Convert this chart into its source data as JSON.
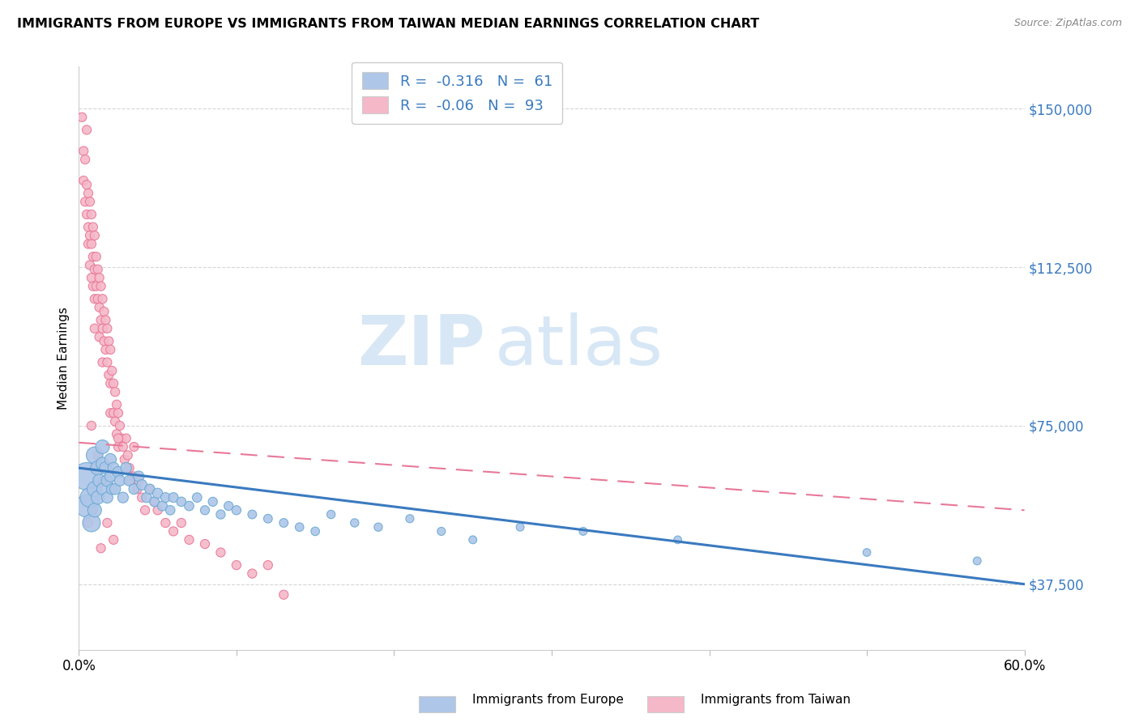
{
  "title": "IMMIGRANTS FROM EUROPE VS IMMIGRANTS FROM TAIWAN MEDIAN EARNINGS CORRELATION CHART",
  "source": "Source: ZipAtlas.com",
  "ylabel": "Median Earnings",
  "yticks": [
    37500,
    75000,
    112500,
    150000
  ],
  "ytick_labels": [
    "$37,500",
    "$75,000",
    "$112,500",
    "$150,000"
  ],
  "xtick_positions": [
    0.0,
    0.1,
    0.2,
    0.3,
    0.4,
    0.5,
    0.6
  ],
  "xmin": 0.0,
  "xmax": 0.6,
  "ymin": 22000,
  "ymax": 160000,
  "europe_color": "#aec6e8",
  "taiwan_color": "#f5b8c8",
  "europe_edge_color": "#6aaad4",
  "taiwan_edge_color": "#e87898",
  "trendline_blue": "#3a7abf",
  "trendline_pink": "#e87898",
  "legend_label_europe": "Immigrants from Europe",
  "legend_label_taiwan": "Immigrants from Taiwan",
  "watermark_zip": "ZIP",
  "watermark_atlas": "atlas",
  "europe_R": -0.316,
  "europe_N": 61,
  "taiwan_R": -0.06,
  "taiwan_N": 93,
  "europe_scatter_x": [
    0.005,
    0.005,
    0.007,
    0.008,
    0.01,
    0.01,
    0.01,
    0.012,
    0.012,
    0.013,
    0.015,
    0.015,
    0.015,
    0.017,
    0.018,
    0.018,
    0.02,
    0.02,
    0.021,
    0.022,
    0.023,
    0.025,
    0.026,
    0.028,
    0.03,
    0.032,
    0.035,
    0.038,
    0.04,
    0.043,
    0.045,
    0.048,
    0.05,
    0.053,
    0.055,
    0.058,
    0.06,
    0.065,
    0.07,
    0.075,
    0.08,
    0.085,
    0.09,
    0.095,
    0.1,
    0.11,
    0.12,
    0.13,
    0.14,
    0.15,
    0.16,
    0.175,
    0.19,
    0.21,
    0.23,
    0.25,
    0.28,
    0.32,
    0.38,
    0.5,
    0.57
  ],
  "europe_scatter_y": [
    63000,
    56000,
    58000,
    52000,
    68000,
    60000,
    55000,
    65000,
    58000,
    62000,
    70000,
    66000,
    60000,
    65000,
    62000,
    58000,
    67000,
    63000,
    60000,
    65000,
    60000,
    64000,
    62000,
    58000,
    65000,
    62000,
    60000,
    63000,
    61000,
    58000,
    60000,
    57000,
    59000,
    56000,
    58000,
    55000,
    58000,
    57000,
    56000,
    58000,
    55000,
    57000,
    54000,
    56000,
    55000,
    54000,
    53000,
    52000,
    51000,
    50000,
    54000,
    52000,
    51000,
    53000,
    50000,
    48000,
    51000,
    50000,
    48000,
    45000,
    43000
  ],
  "europe_scatter_size": [
    600,
    400,
    300,
    250,
    220,
    180,
    150,
    160,
    140,
    130,
    150,
    130,
    110,
    120,
    110,
    100,
    110,
    100,
    95,
    100,
    95,
    100,
    90,
    90,
    95,
    90,
    85,
    90,
    85,
    80,
    80,
    75,
    80,
    75,
    75,
    70,
    75,
    70,
    70,
    70,
    65,
    65,
    65,
    65,
    65,
    60,
    60,
    60,
    58,
    58,
    55,
    55,
    55,
    52,
    52,
    50,
    50,
    50,
    48,
    48,
    50
  ],
  "taiwan_scatter_x": [
    0.002,
    0.003,
    0.003,
    0.004,
    0.004,
    0.005,
    0.005,
    0.005,
    0.006,
    0.006,
    0.006,
    0.007,
    0.007,
    0.007,
    0.008,
    0.008,
    0.008,
    0.009,
    0.009,
    0.009,
    0.01,
    0.01,
    0.01,
    0.01,
    0.011,
    0.011,
    0.012,
    0.012,
    0.013,
    0.013,
    0.013,
    0.014,
    0.014,
    0.015,
    0.015,
    0.015,
    0.016,
    0.016,
    0.017,
    0.017,
    0.018,
    0.018,
    0.019,
    0.019,
    0.02,
    0.02,
    0.02,
    0.021,
    0.022,
    0.022,
    0.023,
    0.023,
    0.024,
    0.024,
    0.025,
    0.025,
    0.026,
    0.027,
    0.028,
    0.029,
    0.03,
    0.031,
    0.032,
    0.033,
    0.035,
    0.035,
    0.037,
    0.038,
    0.04,
    0.042,
    0.045,
    0.048,
    0.05,
    0.055,
    0.06,
    0.065,
    0.07,
    0.08,
    0.09,
    0.1,
    0.11,
    0.12,
    0.13,
    0.025,
    0.015,
    0.008,
    0.012,
    0.009,
    0.018,
    0.022,
    0.01,
    0.006,
    0.014
  ],
  "taiwan_scatter_y": [
    148000,
    140000,
    133000,
    138000,
    128000,
    145000,
    132000,
    125000,
    130000,
    122000,
    118000,
    128000,
    120000,
    113000,
    125000,
    118000,
    110000,
    122000,
    115000,
    108000,
    120000,
    112000,
    105000,
    98000,
    115000,
    108000,
    112000,
    105000,
    110000,
    103000,
    96000,
    108000,
    100000,
    105000,
    98000,
    90000,
    102000,
    95000,
    100000,
    93000,
    98000,
    90000,
    95000,
    87000,
    93000,
    85000,
    78000,
    88000,
    85000,
    78000,
    83000,
    76000,
    80000,
    73000,
    78000,
    70000,
    75000,
    72000,
    70000,
    67000,
    72000,
    68000,
    65000,
    62000,
    70000,
    63000,
    60000,
    62000,
    58000,
    55000,
    60000,
    57000,
    55000,
    52000,
    50000,
    52000,
    48000,
    47000,
    45000,
    42000,
    40000,
    42000,
    35000,
    72000,
    62000,
    75000,
    68000,
    55000,
    52000,
    48000,
    65000,
    52000,
    46000
  ],
  "taiwan_scatter_size": [
    65,
    65,
    65,
    65,
    65,
    65,
    65,
    65,
    65,
    65,
    65,
    65,
    65,
    65,
    65,
    65,
    65,
    65,
    65,
    65,
    65,
    65,
    65,
    65,
    65,
    65,
    65,
    65,
    65,
    65,
    65,
    65,
    65,
    65,
    65,
    65,
    65,
    65,
    65,
    65,
    65,
    65,
    65,
    65,
    65,
    65,
    65,
    65,
    65,
    65,
    65,
    65,
    65,
    65,
    65,
    65,
    65,
    65,
    65,
    65,
    65,
    65,
    65,
    65,
    65,
    65,
    65,
    65,
    65,
    65,
    65,
    65,
    65,
    65,
    65,
    65,
    65,
    65,
    65,
    65,
    65,
    65,
    65,
    65,
    65,
    65,
    65,
    65,
    65,
    65,
    65,
    65,
    65
  ],
  "eu_trend_x0": 0.0,
  "eu_trend_x1": 0.6,
  "eu_trend_y0": 65000,
  "eu_trend_y1": 37500,
  "tw_trend_x0": 0.0,
  "tw_trend_x1": 0.6,
  "tw_trend_y0": 71000,
  "tw_trend_y1": 55000
}
